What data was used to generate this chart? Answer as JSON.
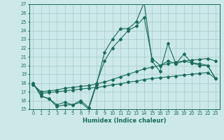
{
  "title": "",
  "xlabel": "Humidex (Indice chaleur)",
  "bg_color": "#cce8e8",
  "grid_color": "#aacfcf",
  "line_color": "#1a6b5a",
  "xmin": -0.5,
  "xmax": 23.5,
  "ymin": 15,
  "ymax": 27,
  "series": [
    [
      18,
      16.5,
      16.2,
      15.3,
      15.5,
      15.5,
      15.8,
      15.0,
      17.8,
      21.5,
      23.0,
      24.2,
      24.2,
      25.0,
      27.2,
      20.5,
      19.3,
      22.5,
      20.2,
      21.3,
      20.3,
      20.0,
      20.0,
      18.5
    ],
    [
      18,
      16.5,
      16.2,
      15.5,
      15.8,
      15.5,
      16.0,
      15.2,
      18.0,
      20.5,
      22.0,
      23.0,
      24.0,
      24.5,
      25.5,
      20.8,
      20.0,
      20.5,
      20.2,
      20.5,
      20.3,
      20.2,
      20.0,
      18.5
    ],
    [
      17.8,
      17.0,
      17.1,
      17.2,
      17.4,
      17.5,
      17.6,
      17.7,
      17.9,
      18.1,
      18.4,
      18.7,
      19.0,
      19.3,
      19.6,
      19.8,
      20.0,
      20.2,
      20.4,
      20.5,
      20.6,
      20.7,
      20.8,
      20.5
    ],
    [
      17.8,
      16.8,
      16.9,
      17.0,
      17.1,
      17.2,
      17.3,
      17.4,
      17.5,
      17.6,
      17.8,
      17.9,
      18.1,
      18.2,
      18.4,
      18.5,
      18.6,
      18.7,
      18.8,
      18.9,
      19.0,
      19.1,
      19.2,
      18.5
    ]
  ]
}
